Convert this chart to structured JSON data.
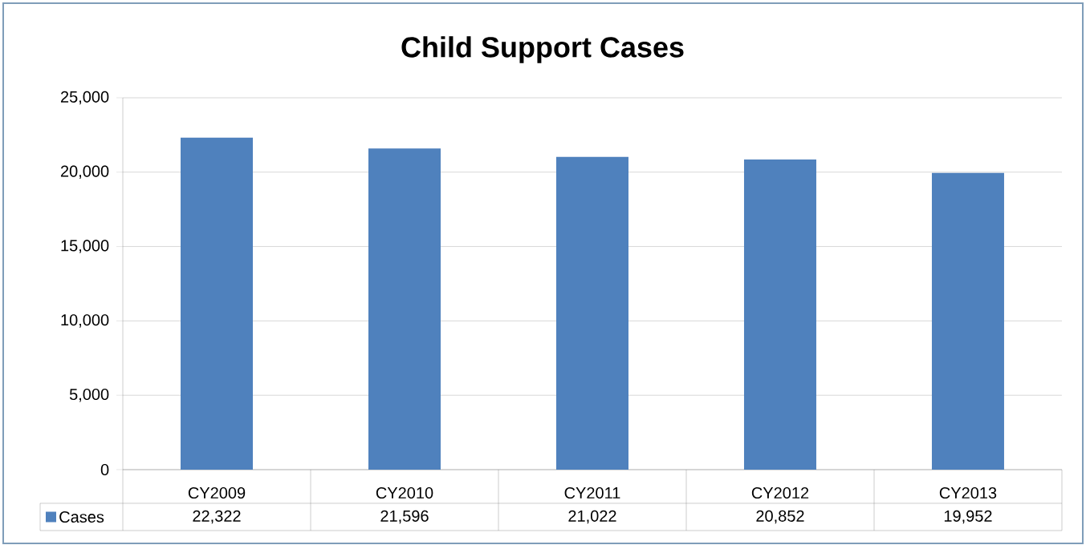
{
  "chart_data": {
    "type": "bar",
    "title": "Child Support Cases",
    "categories": [
      "CY2009",
      "CY2010",
      "CY2011",
      "CY2012",
      "CY2013"
    ],
    "series": [
      {
        "name": "Cases",
        "color": "#4f81bd",
        "values": [
          22322,
          21596,
          21022,
          20852,
          19952
        ],
        "value_labels": [
          "22,322",
          "21,596",
          "21,022",
          "20,852",
          "19,952"
        ]
      }
    ],
    "ylim": [
      0,
      25000
    ],
    "yticks": [
      {
        "value": 0,
        "label": "0"
      },
      {
        "value": 5000,
        "label": "5,000"
      },
      {
        "value": 10000,
        "label": "10,000"
      },
      {
        "value": 15000,
        "label": "15,000"
      },
      {
        "value": 20000,
        "label": "20,000"
      },
      {
        "value": 25000,
        "label": "25,000"
      }
    ],
    "grid": "y",
    "legend": "bottom"
  }
}
